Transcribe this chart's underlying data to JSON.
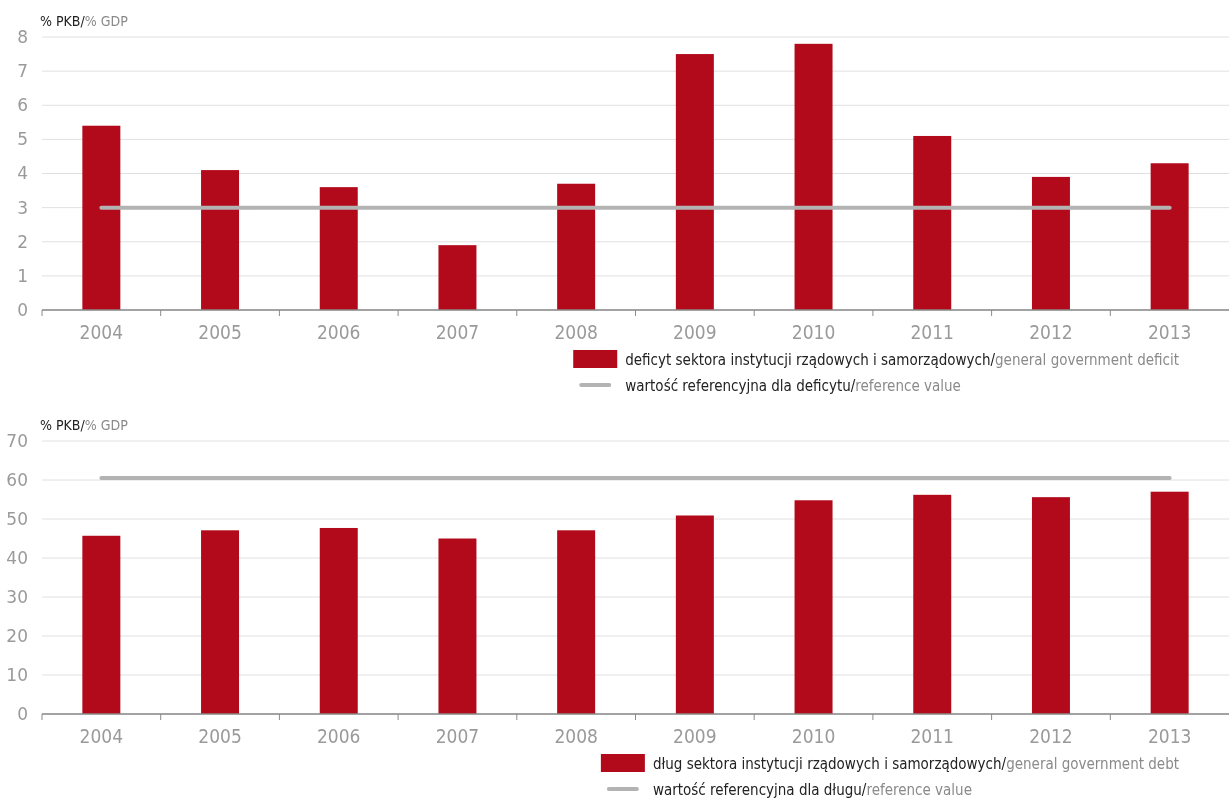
{
  "chart_data": [
    {
      "type": "bar",
      "ylabel": "% PKB/% GDP",
      "categories": [
        "2004",
        "2005",
        "2006",
        "2007",
        "2008",
        "2009",
        "2010",
        "2011",
        "2012",
        "2013"
      ],
      "ylim": [
        0,
        8
      ],
      "yticks": [
        0,
        1,
        2,
        3,
        4,
        5,
        6,
        7,
        8
      ],
      "grid": "y",
      "legend": "bottom right",
      "series": [
        {
          "name": "deficyt sektora instytucji rządowych i samorządowych/general government deficit",
          "color": "#b20a1a",
          "values": [
            5.4,
            4.1,
            3.6,
            1.9,
            3.7,
            7.5,
            7.8,
            5.1,
            3.9,
            4.3
          ]
        },
        {
          "type": "line",
          "name": "wartość referencyjna dla deficytu/reference value",
          "color": "#b3b3b3",
          "values": [
            3,
            3,
            3,
            3,
            3,
            3,
            3,
            3,
            3,
            3
          ]
        }
      ]
    },
    {
      "type": "bar",
      "ylabel": "% PKB/% GDP",
      "categories": [
        "2004",
        "2005",
        "2006",
        "2007",
        "2008",
        "2009",
        "2010",
        "2011",
        "2012",
        "2013"
      ],
      "ylim": [
        0,
        70
      ],
      "yticks": [
        0,
        10,
        20,
        30,
        40,
        50,
        60,
        70
      ],
      "grid": "y",
      "legend": "bottom right",
      "series": [
        {
          "name": "dług sektora instytucji rządowych i samorządowych/general government debt",
          "color": "#b20a1a",
          "values": [
            45.7,
            47.1,
            47.7,
            45.0,
            47.1,
            50.9,
            54.8,
            56.2,
            55.6,
            57.0
          ]
        },
        {
          "type": "line",
          "name": "wartość referencyjna dla długu/reference value",
          "color": "#b3b3b3",
          "values": [
            60.5,
            60.5,
            60.5,
            60.5,
            60.5,
            60.5,
            60.5,
            60.5,
            60.5,
            60.5
          ]
        }
      ]
    }
  ]
}
